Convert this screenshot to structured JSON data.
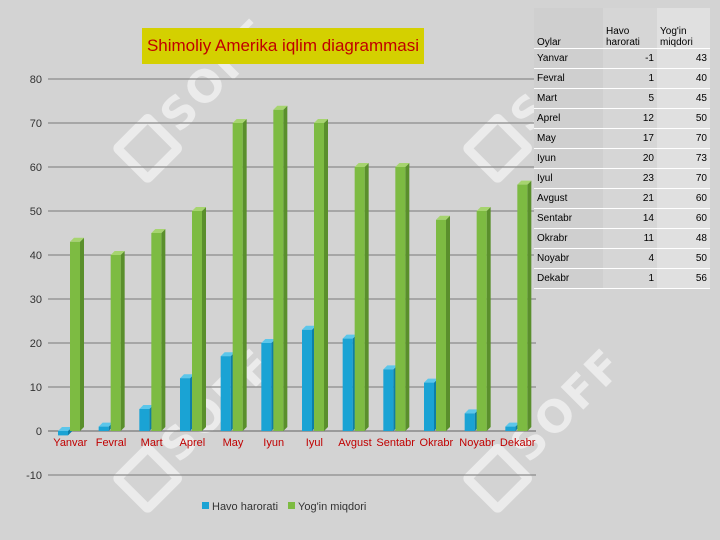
{
  "chart_data": {
    "type": "bar",
    "title": "Shimoliy Amerika iqlim diagrammasi",
    "categories": [
      "Yanvar",
      "Fevral",
      "Mart",
      "Aprel",
      "May",
      "Iyun",
      "Iyul",
      "Avgust",
      "Sentabr",
      "Okrabr",
      "Noyabr",
      "Dekabr"
    ],
    "series": [
      {
        "name": "Havo harorati",
        "values": [
          -1,
          1,
          5,
          12,
          17,
          20,
          23,
          21,
          14,
          11,
          4,
          1
        ],
        "color": "#1aa3d4"
      },
      {
        "name": "Yog'in miqdori",
        "values": [
          43,
          40,
          45,
          50,
          70,
          73,
          70,
          60,
          60,
          48,
          50,
          56
        ],
        "color": "#7dbb42"
      }
    ],
    "ylim": [
      -10,
      80
    ],
    "yticks": [
      -10,
      0,
      10,
      20,
      30,
      40,
      50,
      60,
      70,
      80
    ],
    "grid": true,
    "legend": "bottom",
    "category_label_color": "#c00000"
  },
  "table": {
    "headers": [
      "Oylar",
      "Havo harorati",
      "Yog'in miqdori"
    ],
    "rows": [
      [
        "Yanvar",
        "-1",
        "43"
      ],
      [
        "Fevral",
        "1",
        "40"
      ],
      [
        "Mart",
        "5",
        "45"
      ],
      [
        "Aprel",
        "12",
        "50"
      ],
      [
        "May",
        "17",
        "70"
      ],
      [
        "Iyun",
        "20",
        "73"
      ],
      [
        "Iyul",
        "23",
        "70"
      ],
      [
        "Avgust",
        "21",
        "60"
      ],
      [
        "Sentabr",
        "14",
        "60"
      ],
      [
        "Okrabr",
        "11",
        "48"
      ],
      [
        "Noyabr",
        "4",
        "50"
      ],
      [
        "Dekabr",
        "1",
        "56"
      ]
    ]
  },
  "watermark": {
    "text": "SOFF"
  }
}
